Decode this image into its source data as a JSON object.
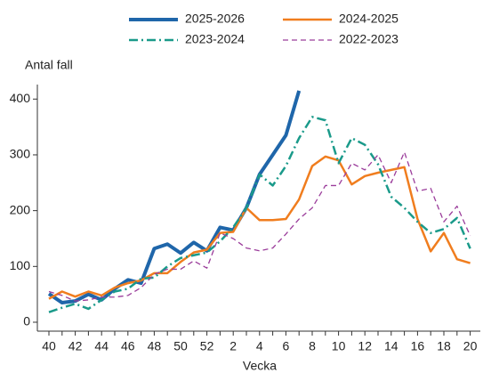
{
  "chart_data": {
    "type": "line",
    "y_label": "Antal fall",
    "x_label": "Vecka",
    "categories": [
      "40",
      null,
      "42",
      null,
      "44",
      null,
      "46",
      null,
      "48",
      null,
      "50",
      null,
      "52",
      null,
      "2",
      null,
      "4",
      null,
      "6",
      null,
      "8",
      null,
      "10",
      null,
      "12",
      null,
      "14",
      null,
      "16",
      null,
      "18",
      null,
      "20"
    ],
    "series": [
      {
        "name": "2025-2026",
        "color": "#1f66aa",
        "linestyle": "solid",
        "linewidth": 4,
        "values": [
          51,
          35,
          38,
          50,
          40,
          60,
          76,
          70,
          132,
          140,
          124,
          143,
          128,
          170,
          165,
          205,
          265,
          300,
          335,
          415,
          null,
          null,
          null,
          null,
          null,
          null,
          null,
          null,
          null,
          null,
          null,
          null,
          null
        ]
      },
      {
        "name": "2024-2025",
        "color": "#f07d1e",
        "linestyle": "solid",
        "linewidth": 2.5,
        "values": [
          42,
          55,
          46,
          55,
          48,
          62,
          70,
          75,
          88,
          88,
          108,
          125,
          130,
          160,
          162,
          205,
          183,
          183,
          185,
          220,
          280,
          297,
          290,
          247,
          262,
          268,
          273,
          278,
          185,
          127,
          160,
          113,
          106
        ]
      },
      {
        "name": "2023-2024",
        "color": "#1a9a8a",
        "linestyle": "dashdot",
        "linewidth": 2.5,
        "values": [
          18,
          26,
          33,
          24,
          40,
          55,
          60,
          78,
          80,
          100,
          115,
          120,
          125,
          145,
          170,
          205,
          265,
          245,
          280,
          330,
          368,
          362,
          285,
          330,
          318,
          283,
          225,
          205,
          180,
          160,
          167,
          187,
          132
        ]
      },
      {
        "name": "2022-2023",
        "color": "#9b3d9b",
        "linestyle": "dashed",
        "linewidth": 1.3,
        "values": [
          55,
          48,
          38,
          40,
          45,
          45,
          48,
          62,
          86,
          95,
          95,
          110,
          97,
          160,
          150,
          133,
          128,
          133,
          158,
          185,
          205,
          245,
          245,
          285,
          273,
          300,
          250,
          305,
          235,
          240,
          180,
          208,
          155
        ]
      }
    ],
    "ylim": [
      -16,
      426
    ],
    "yticks": [
      0,
      100,
      200,
      300,
      400
    ],
    "grid": false
  }
}
